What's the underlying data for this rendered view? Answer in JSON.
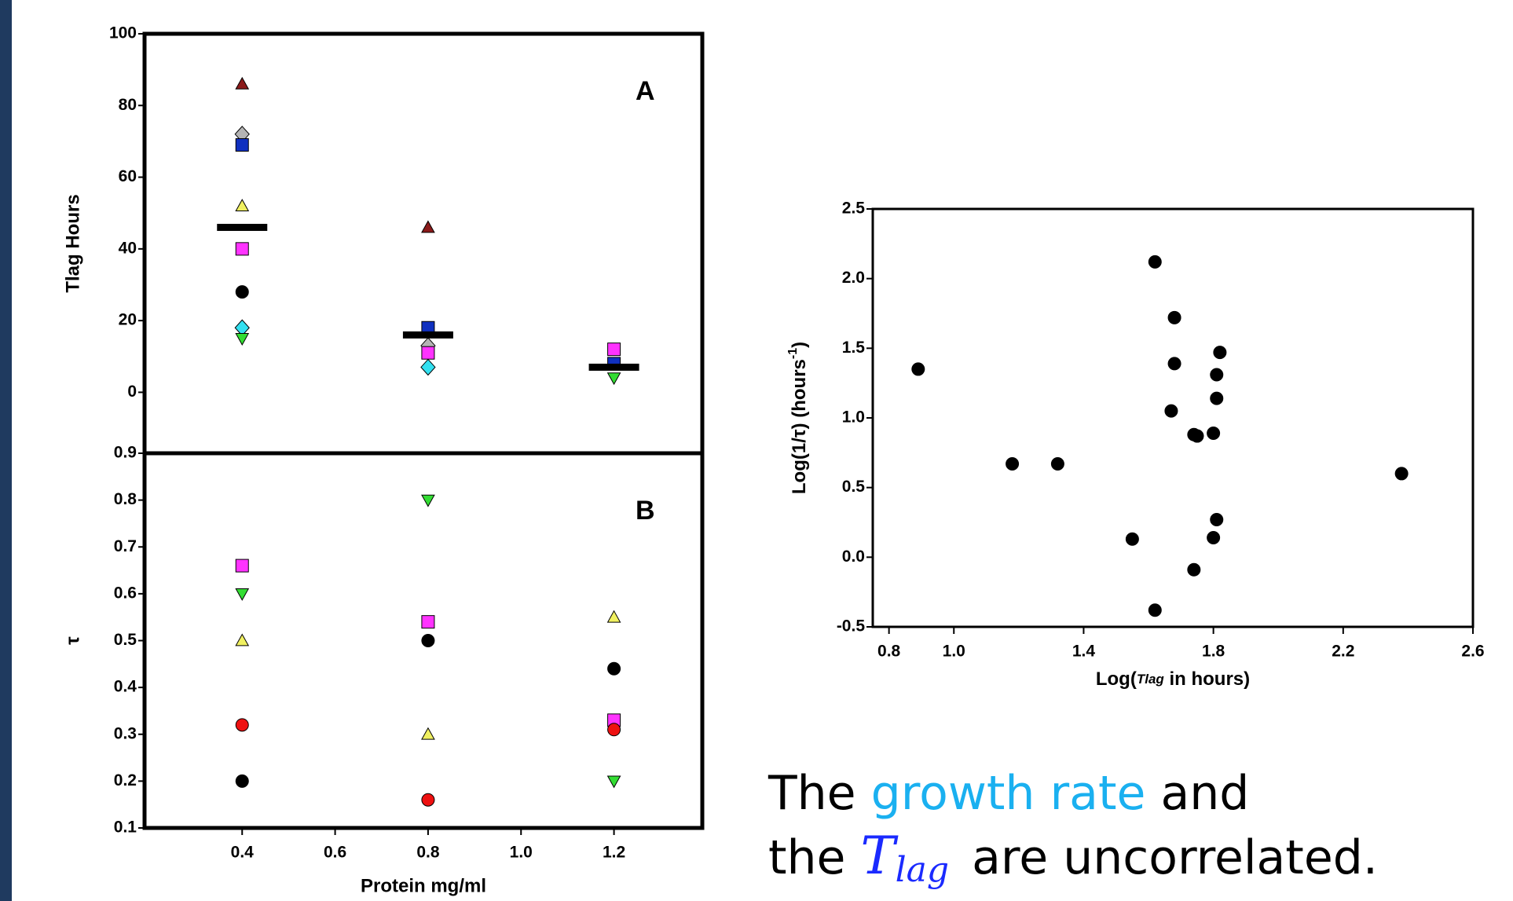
{
  "chart_data": [
    {
      "type": "scatter",
      "label": "A",
      "ylabel": "Tlag  Hours",
      "xlim": [
        0.19,
        1.39
      ],
      "ylim": [
        -17,
        100
      ],
      "yticks": [
        0,
        20,
        40,
        60,
        80,
        100
      ],
      "series": [
        {
          "marker": "triangle-up",
          "color": "#8b1a1a",
          "x": [
            0.4,
            0.8
          ],
          "values": [
            86,
            46
          ]
        },
        {
          "marker": "diamond",
          "color": "#b4b4b4",
          "x": [
            0.4,
            0.8
          ],
          "values": [
            72,
            13
          ]
        },
        {
          "marker": "square",
          "color": "#1030c0",
          "x": [
            0.4,
            0.8,
            1.2
          ],
          "values": [
            69,
            18,
            8
          ]
        },
        {
          "marker": "triangle-up",
          "color": "#f0f060",
          "x": [
            0.4
          ],
          "values": [
            52
          ]
        },
        {
          "marker": "square",
          "color": "#ff33ff",
          "x": [
            0.4,
            0.8,
            1.2
          ],
          "values": [
            40,
            11,
            12
          ]
        },
        {
          "marker": "circle",
          "color": "#000000",
          "x": [
            0.4
          ],
          "values": [
            28
          ]
        },
        {
          "marker": "diamond",
          "color": "#33e0f0",
          "x": [
            0.4,
            0.8
          ],
          "values": [
            18,
            7
          ]
        },
        {
          "marker": "triangle-down",
          "color": "#33dd33",
          "x": [
            0.4,
            1.2
          ],
          "values": [
            15,
            4
          ]
        },
        {
          "marker": "bar",
          "color": "#000000",
          "x": [
            0.4,
            0.8,
            1.2
          ],
          "values": [
            46,
            16,
            7
          ]
        }
      ]
    },
    {
      "type": "scatter",
      "label": "B",
      "ylabel": "τ",
      "xlabel": "Protein mg/ml",
      "xlim": [
        0.19,
        1.39
      ],
      "ylim": [
        0.1,
        0.9
      ],
      "xticks": [
        0.4,
        0.6,
        0.8,
        {
          "value": 1,
          "label": "1.0"
        },
        1.2
      ],
      "yticks": [
        0.1,
        0.2,
        0.3,
        0.4,
        0.5,
        0.6,
        0.7,
        0.8,
        0.9
      ],
      "series": [
        {
          "marker": "square",
          "color": "#ff33ff",
          "x": [
            0.4,
            0.8,
            1.2
          ],
          "values": [
            0.66,
            0.54,
            0.33
          ]
        },
        {
          "marker": "triangle-down",
          "color": "#33dd33",
          "x": [
            0.4,
            0.8,
            1.2
          ],
          "values": [
            0.6,
            0.8,
            0.2
          ]
        },
        {
          "marker": "triangle-up",
          "color": "#f0f060",
          "x": [
            0.4,
            0.8,
            1.2
          ],
          "values": [
            0.5,
            0.3,
            0.55
          ]
        },
        {
          "marker": "circle",
          "color": "#ee1111",
          "x": [
            0.4,
            0.8,
            1.2
          ],
          "values": [
            0.32,
            0.16,
            0.31
          ]
        },
        {
          "marker": "circle",
          "color": "#000000",
          "x": [
            0.4,
            0.8,
            1.2
          ],
          "values": [
            0.2,
            0.5,
            0.44
          ]
        }
      ]
    },
    {
      "type": "scatter",
      "ylabel": [
        "Log(1/τ) (hours",
        "-1",
        ")"
      ],
      "xlabel": [
        "Log(",
        "Tlag",
        " in hours)"
      ],
      "xlim": [
        0.75,
        2.6
      ],
      "ylim": [
        -0.5,
        2.5
      ],
      "xticks": [
        0.8,
        {
          "value": 1,
          "label": "1.0"
        },
        1.4,
        1.8,
        2.2,
        2.6
      ],
      "yticks": [
        -0.5,
        {
          "value": 0,
          "label": "0.0"
        },
        0.5,
        {
          "value": 1,
          "label": "1.0"
        },
        1.5,
        {
          "value": 2,
          "label": "2.0"
        },
        2.5
      ],
      "series": [
        {
          "marker": "circle",
          "color": "#000000",
          "x": [
            0.89,
            1.62,
            1.68,
            1.68,
            1.82,
            1.81,
            1.81,
            1.67,
            1.74,
            1.75,
            1.8,
            1.18,
            1.32,
            1.81,
            1.55,
            1.8,
            1.74,
            1.62,
            2.38
          ],
          "values": [
            1.35,
            2.12,
            1.72,
            1.39,
            1.47,
            1.31,
            1.14,
            1.05,
            0.88,
            0.87,
            0.89,
            0.67,
            0.67,
            0.27,
            0.13,
            0.14,
            -0.09,
            -0.38,
            0.6
          ]
        }
      ]
    }
  ],
  "caption": {
    "line1": [
      "The ",
      "growth rate",
      " and"
    ],
    "line2": [
      "the ",
      "T",
      "lag",
      " are uncorrelated."
    ]
  }
}
